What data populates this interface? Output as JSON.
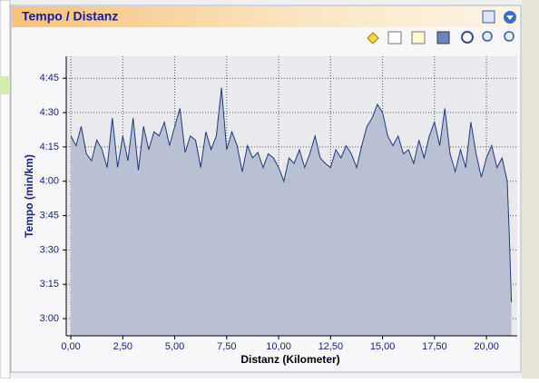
{
  "chart_data": {
    "type": "area",
    "title": "Tempo / Distanz",
    "x_label": "Distanz (Kilometer)",
    "y_label": "Tempo (min/km)",
    "x": [
      0,
      0.25,
      0.5,
      0.75,
      1,
      1.25,
      1.5,
      1.75,
      2,
      2.25,
      2.5,
      2.75,
      3,
      3.25,
      3.5,
      3.75,
      4,
      4.25,
      4.5,
      4.75,
      5,
      5.25,
      5.5,
      5.75,
      6,
      6.25,
      6.5,
      6.75,
      7,
      7.25,
      7.5,
      7.75,
      8,
      8.25,
      8.5,
      8.75,
      9,
      9.25,
      9.5,
      9.75,
      10,
      10.25,
      10.5,
      10.75,
      11,
      11.25,
      11.5,
      11.75,
      12,
      12.25,
      12.5,
      12.75,
      13,
      13.25,
      13.5,
      13.75,
      14,
      14.25,
      14.5,
      14.75,
      15,
      15.25,
      15.5,
      15.75,
      16,
      16.25,
      16.5,
      16.75,
      17,
      17.25,
      17.5,
      17.75,
      18,
      18.25,
      18.5,
      18.75,
      19,
      19.25,
      19.5,
      19.75,
      20,
      20.25,
      20.5,
      20.75,
      21,
      21.1,
      21.2
    ],
    "values": [
      4.33,
      4.26,
      4.4,
      4.2,
      4.15,
      4.3,
      4.23,
      4.1,
      4.46,
      4.1,
      4.33,
      4.15,
      4.46,
      4.08,
      4.4,
      4.23,
      4.36,
      4.33,
      4.43,
      4.26,
      4.4,
      4.53,
      4.21,
      4.33,
      4.3,
      4.1,
      4.36,
      4.23,
      4.33,
      4.68,
      4.23,
      4.36,
      4.26,
      4.07,
      4.26,
      4.17,
      4.21,
      4.1,
      4.2,
      4.17,
      4.1,
      4.0,
      4.17,
      4.13,
      4.23,
      4.1,
      4.2,
      4.33,
      4.17,
      4.13,
      4.1,
      4.23,
      4.17,
      4.26,
      4.2,
      4.1,
      4.26,
      4.4,
      4.46,
      4.56,
      4.5,
      4.33,
      4.26,
      4.33,
      4.2,
      4.23,
      4.13,
      4.3,
      4.17,
      4.33,
      4.43,
      4.26,
      4.53,
      4.2,
      4.07,
      4.23,
      4.1,
      4.43,
      4.2,
      4.03,
      4.17,
      4.26,
      4.1,
      4.17,
      4.0,
      3.6,
      3.12
    ],
    "color": "#1f3b7a",
    "fill": "#b9c0d4",
    "xlim": [
      -0.22,
      21.48
    ],
    "ylim": [
      2.875,
      4.91
    ],
    "xticks": [
      {
        "value": 0,
        "label": "0,00"
      },
      {
        "value": 2.5,
        "label": "2,50"
      },
      {
        "value": 5,
        "label": "5,00"
      },
      {
        "value": 7.5,
        "label": "7,50"
      },
      {
        "value": 10,
        "label": "10,00"
      },
      {
        "value": 12.5,
        "label": "12,50"
      },
      {
        "value": 15,
        "label": "15,00"
      },
      {
        "value": 17.5,
        "label": "17,50"
      },
      {
        "value": 20,
        "label": "20,00"
      }
    ],
    "yticks": [
      {
        "value": 3,
        "label": "3:00"
      },
      {
        "value": 3.25,
        "label": "3:15"
      },
      {
        "value": 3.5,
        "label": "3:30"
      },
      {
        "value": 3.75,
        "label": "3:45"
      },
      {
        "value": 4,
        "label": "4:00"
      },
      {
        "value": 4.25,
        "label": "4:15"
      },
      {
        "value": 4.5,
        "label": "4:30"
      },
      {
        "value": 4.75,
        "label": "4:45"
      }
    ],
    "grid": true
  }
}
